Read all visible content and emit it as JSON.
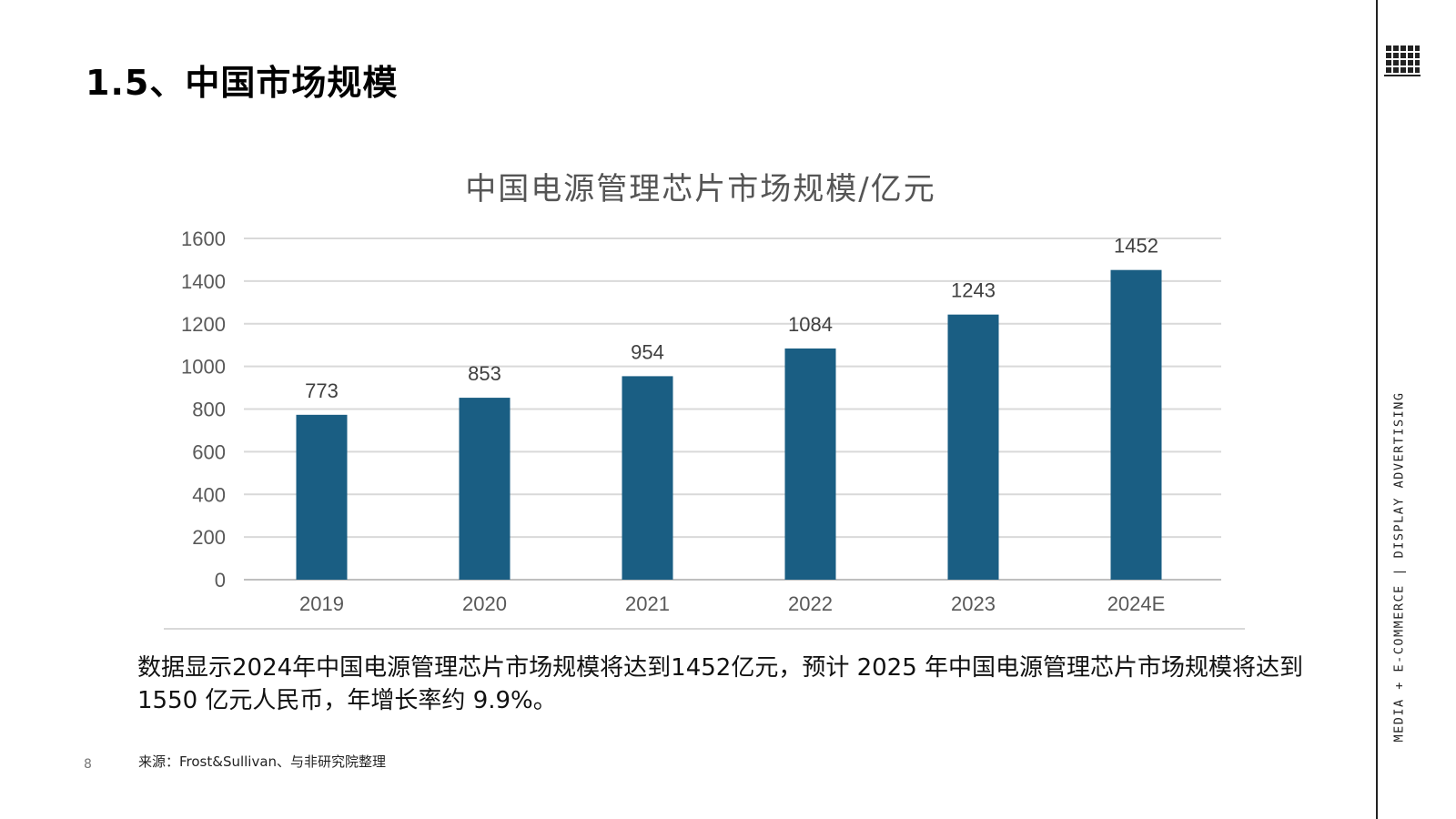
{
  "page": {
    "heading": "1.5、中国市场规模",
    "description": "数据显示2024年中国电源管理芯片市场规模将达到1452亿元，预计 2025 年中国电源管理芯片市场规模将达到1550 亿元人民币，年增长率约 9.9%。",
    "source": "来源：Frost&Sullivan、与非研究院整理",
    "page_number": "8",
    "side_label": "MEDIA + E-COMMERCE | DISPLAY ADVERTISING",
    "logo_icon": "grid-logo-icon",
    "bar_color": "#1a5e83"
  },
  "chart_data": {
    "type": "bar",
    "title": "中国电源管理芯片市场规模/亿元",
    "categories": [
      "2019",
      "2020",
      "2021",
      "2022",
      "2023",
      "2024E"
    ],
    "values": [
      773,
      853,
      954,
      1084,
      1243,
      1452
    ],
    "data_labels": [
      "773",
      "853",
      "954",
      "1084",
      "1243",
      "1452"
    ],
    "yticks": [
      "0",
      "200",
      "400",
      "600",
      "800",
      "1000",
      "1200",
      "1400",
      "1600"
    ],
    "ylim": [
      0,
      1600
    ],
    "xlabel": "",
    "ylabel": "",
    "grid": true,
    "legend": "none"
  }
}
